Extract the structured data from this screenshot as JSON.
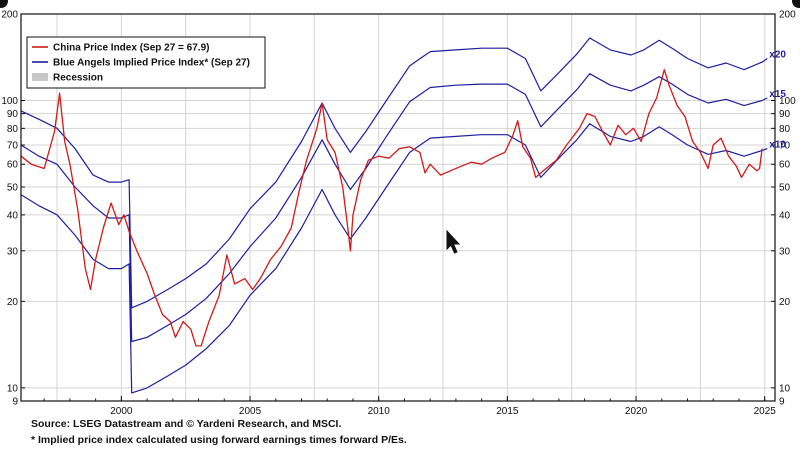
{
  "chart_data": {
    "type": "line",
    "yscale": "log",
    "ylim": [
      9,
      200
    ],
    "xlim": [
      1996.1,
      2025.4
    ],
    "y_ticks": [
      9,
      10,
      20,
      30,
      40,
      50,
      60,
      70,
      80,
      90,
      100,
      200
    ],
    "x_ticks": [
      2000,
      2005,
      2010,
      2015,
      2020,
      2025
    ],
    "legend": {
      "placement": "top-left",
      "entries": [
        {
          "label": "China Price Index (Sep 27 = 67.9)",
          "color": "#d11a1a",
          "kind": "line"
        },
        {
          "label": "Blue Angels Implied Price Index* (Sep 27)",
          "color": "#1f1f9e",
          "kind": "line"
        },
        {
          "label": "Recession",
          "color": "#c8c8c8",
          "kind": "box"
        }
      ]
    },
    "series_labels": [
      "x20",
      "x15",
      "x10"
    ],
    "series": [
      {
        "name": "China Price Index",
        "color": "#d11a1a",
        "points": [
          [
            1996.1,
            64
          ],
          [
            1996.5,
            60
          ],
          [
            1997.0,
            58
          ],
          [
            1997.4,
            78
          ],
          [
            1997.6,
            106
          ],
          [
            1997.8,
            72
          ],
          [
            1998.0,
            60
          ],
          [
            1998.3,
            42
          ],
          [
            1998.6,
            26
          ],
          [
            1998.8,
            22
          ],
          [
            1999.0,
            28
          ],
          [
            1999.3,
            36
          ],
          [
            1999.6,
            44
          ],
          [
            1999.9,
            37
          ],
          [
            2000.1,
            40
          ],
          [
            2000.3,
            35
          ],
          [
            2000.6,
            30
          ],
          [
            2001.0,
            25
          ],
          [
            2001.3,
            21
          ],
          [
            2001.6,
            18
          ],
          [
            2001.9,
            17
          ],
          [
            2002.1,
            15
          ],
          [
            2002.4,
            17
          ],
          [
            2002.7,
            16
          ],
          [
            2002.9,
            14
          ],
          [
            2003.1,
            14
          ],
          [
            2003.4,
            17
          ],
          [
            2003.8,
            21
          ],
          [
            2004.1,
            29
          ],
          [
            2004.4,
            23
          ],
          [
            2004.8,
            24
          ],
          [
            2005.1,
            22
          ],
          [
            2005.4,
            24
          ],
          [
            2005.8,
            28
          ],
          [
            2006.2,
            31
          ],
          [
            2006.6,
            36
          ],
          [
            2006.9,
            48
          ],
          [
            2007.2,
            62
          ],
          [
            2007.6,
            80
          ],
          [
            2007.8,
            98
          ],
          [
            2008.0,
            73
          ],
          [
            2008.3,
            66
          ],
          [
            2008.6,
            50
          ],
          [
            2008.8,
            36
          ],
          [
            2008.9,
            30
          ],
          [
            2009.0,
            40
          ],
          [
            2009.3,
            53
          ],
          [
            2009.6,
            62
          ],
          [
            2010.0,
            64
          ],
          [
            2010.4,
            63
          ],
          [
            2010.8,
            68
          ],
          [
            2011.2,
            69
          ],
          [
            2011.6,
            66
          ],
          [
            2011.8,
            56
          ],
          [
            2012.0,
            60
          ],
          [
            2012.4,
            55
          ],
          [
            2012.8,
            57
          ],
          [
            2013.2,
            59
          ],
          [
            2013.6,
            61
          ],
          [
            2014.0,
            60
          ],
          [
            2014.4,
            63
          ],
          [
            2014.9,
            66
          ],
          [
            2015.2,
            75
          ],
          [
            2015.4,
            85
          ],
          [
            2015.6,
            69
          ],
          [
            2015.9,
            63
          ],
          [
            2016.1,
            54
          ],
          [
            2016.5,
            58
          ],
          [
            2016.9,
            62
          ],
          [
            2017.3,
            70
          ],
          [
            2017.8,
            80
          ],
          [
            2018.1,
            90
          ],
          [
            2018.4,
            88
          ],
          [
            2018.7,
            78
          ],
          [
            2019.0,
            70
          ],
          [
            2019.3,
            82
          ],
          [
            2019.6,
            76
          ],
          [
            2019.9,
            80
          ],
          [
            2020.2,
            72
          ],
          [
            2020.5,
            90
          ],
          [
            2020.8,
            102
          ],
          [
            2021.1,
            128
          ],
          [
            2021.3,
            112
          ],
          [
            2021.6,
            96
          ],
          [
            2021.9,
            88
          ],
          [
            2022.2,
            72
          ],
          [
            2022.5,
            66
          ],
          [
            2022.8,
            58
          ],
          [
            2023.0,
            70
          ],
          [
            2023.3,
            74
          ],
          [
            2023.6,
            64
          ],
          [
            2023.9,
            59
          ],
          [
            2024.1,
            54
          ],
          [
            2024.4,
            60
          ],
          [
            2024.7,
            57
          ],
          [
            2024.8,
            58
          ],
          [
            2024.9,
            68
          ]
        ]
      },
      {
        "name": "Blue Angels Implied Price Index x20",
        "color": "#1f1f9e",
        "label": "x20",
        "points": [
          [
            1996.1,
            92
          ],
          [
            1996.8,
            86
          ],
          [
            1997.5,
            80
          ],
          [
            1998.2,
            68
          ],
          [
            1998.9,
            55
          ],
          [
            1999.5,
            52
          ],
          [
            2000.0,
            52
          ],
          [
            2000.3,
            53
          ],
          [
            2000.4,
            19
          ],
          [
            2001.0,
            20
          ],
          [
            2001.8,
            22
          ],
          [
            2002.5,
            24
          ],
          [
            2003.3,
            27
          ],
          [
            2004.2,
            33
          ],
          [
            2005.0,
            42
          ],
          [
            2006.0,
            52
          ],
          [
            2007.0,
            72
          ],
          [
            2007.8,
            98
          ],
          [
            2008.3,
            80
          ],
          [
            2008.9,
            66
          ],
          [
            2009.5,
            78
          ],
          [
            2010.3,
            100
          ],
          [
            2011.2,
            132
          ],
          [
            2012.0,
            148
          ],
          [
            2013.0,
            150
          ],
          [
            2014.0,
            152
          ],
          [
            2015.0,
            152
          ],
          [
            2015.7,
            140
          ],
          [
            2016.3,
            108
          ],
          [
            2017.0,
            125
          ],
          [
            2017.7,
            145
          ],
          [
            2018.2,
            165
          ],
          [
            2019.0,
            150
          ],
          [
            2019.8,
            144
          ],
          [
            2020.3,
            150
          ],
          [
            2020.9,
            162
          ],
          [
            2021.4,
            152
          ],
          [
            2022.0,
            140
          ],
          [
            2022.8,
            130
          ],
          [
            2023.5,
            135
          ],
          [
            2024.2,
            128
          ],
          [
            2024.9,
            136
          ],
          [
            2025.1,
            140
          ]
        ]
      },
      {
        "name": "Blue Angels Implied Price Index x15",
        "color": "#1f1f9e",
        "label": "x15",
        "points": [
          [
            1996.1,
            70
          ],
          [
            1996.8,
            64
          ],
          [
            1997.5,
            60
          ],
          [
            1998.2,
            50
          ],
          [
            1998.9,
            43
          ],
          [
            1999.5,
            39
          ],
          [
            2000.0,
            39
          ],
          [
            2000.3,
            40
          ],
          [
            2000.4,
            14.5
          ],
          [
            2001.0,
            15
          ],
          [
            2001.8,
            16.5
          ],
          [
            2002.5,
            18
          ],
          [
            2003.3,
            20.5
          ],
          [
            2004.2,
            25
          ],
          [
            2005.0,
            31
          ],
          [
            2006.0,
            39
          ],
          [
            2007.0,
            54
          ],
          [
            2007.8,
            73
          ],
          [
            2008.3,
            60
          ],
          [
            2008.9,
            49
          ],
          [
            2009.5,
            58
          ],
          [
            2010.3,
            75
          ],
          [
            2011.2,
            99
          ],
          [
            2012.0,
            111
          ],
          [
            2013.0,
            113
          ],
          [
            2014.0,
            114
          ],
          [
            2015.0,
            114
          ],
          [
            2015.7,
            105
          ],
          [
            2016.3,
            81
          ],
          [
            2017.0,
            94
          ],
          [
            2017.7,
            109
          ],
          [
            2018.2,
            124
          ],
          [
            2019.0,
            113
          ],
          [
            2019.8,
            108
          ],
          [
            2020.3,
            113
          ],
          [
            2020.9,
            121
          ],
          [
            2021.4,
            114
          ],
          [
            2022.0,
            105
          ],
          [
            2022.8,
            98
          ],
          [
            2023.5,
            101
          ],
          [
            2024.2,
            96
          ],
          [
            2024.9,
            100
          ],
          [
            2025.1,
            102
          ]
        ]
      },
      {
        "name": "Blue Angels Implied Price Index x10",
        "color": "#1f1f9e",
        "label": "x10",
        "points": [
          [
            1996.1,
            47
          ],
          [
            1996.8,
            43
          ],
          [
            1997.5,
            40
          ],
          [
            1998.2,
            34
          ],
          [
            1998.9,
            28
          ],
          [
            1999.5,
            26
          ],
          [
            2000.0,
            26
          ],
          [
            2000.3,
            27
          ],
          [
            2000.4,
            9.6
          ],
          [
            2001.0,
            10
          ],
          [
            2001.8,
            11
          ],
          [
            2002.5,
            12
          ],
          [
            2003.3,
            13.7
          ],
          [
            2004.2,
            16.5
          ],
          [
            2005.0,
            21
          ],
          [
            2006.0,
            26
          ],
          [
            2007.0,
            36
          ],
          [
            2007.8,
            49
          ],
          [
            2008.3,
            40
          ],
          [
            2008.9,
            33
          ],
          [
            2009.5,
            39
          ],
          [
            2010.3,
            50
          ],
          [
            2011.2,
            66
          ],
          [
            2012.0,
            74
          ],
          [
            2013.0,
            75
          ],
          [
            2014.0,
            76
          ],
          [
            2015.0,
            76
          ],
          [
            2015.7,
            70
          ],
          [
            2016.3,
            54
          ],
          [
            2017.0,
            63
          ],
          [
            2017.7,
            73
          ],
          [
            2018.2,
            83
          ],
          [
            2019.0,
            75
          ],
          [
            2019.8,
            72
          ],
          [
            2020.3,
            75
          ],
          [
            2020.9,
            81
          ],
          [
            2021.4,
            76
          ],
          [
            2022.0,
            70
          ],
          [
            2022.8,
            65
          ],
          [
            2023.5,
            67
          ],
          [
            2024.2,
            64
          ],
          [
            2024.9,
            67
          ],
          [
            2025.1,
            68
          ]
        ]
      }
    ]
  },
  "footer": {
    "source": "Source: LSEG Datastream and © Yardeni Research, and MSCI.",
    "note": "* Implied price index calculated using forward earnings times forward P/Es."
  }
}
